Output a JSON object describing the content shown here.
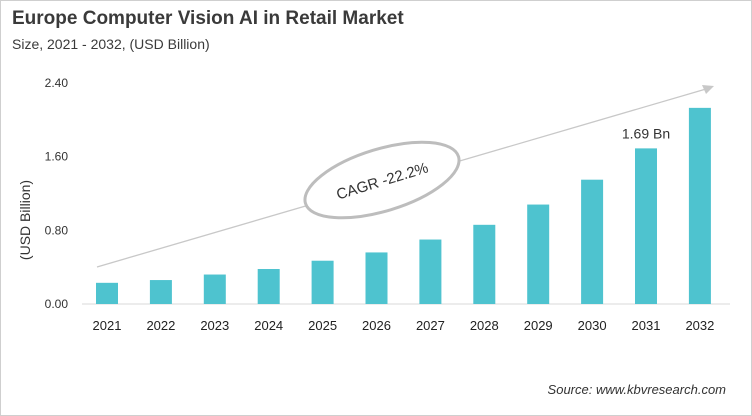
{
  "chart_data": {
    "type": "bar",
    "title": "Europe Computer Vision AI in Retail Market",
    "subtitle": "Size, 2021 - 2032, (USD Billion)",
    "xlabel": "",
    "ylabel": "(USD Billion)",
    "ylim": [
      0,
      2.4
    ],
    "yticks": [
      "0.00",
      "0.80",
      "1.60",
      "2.40"
    ],
    "categories": [
      "2021",
      "2022",
      "2023",
      "2024",
      "2025",
      "2026",
      "2027",
      "2028",
      "2029",
      "2030",
      "2031",
      "2032"
    ],
    "values": [
      0.23,
      0.26,
      0.32,
      0.38,
      0.47,
      0.56,
      0.7,
      0.86,
      1.08,
      1.35,
      1.69,
      2.13
    ],
    "bar_color": "#4ec3cf",
    "annotations": {
      "data_label": "1.69 Bn",
      "data_label_category": "2031",
      "cagr": "CAGR -22.2%"
    },
    "grid": false,
    "legend": "none"
  },
  "source": "Source: www.kbvresearch.com"
}
